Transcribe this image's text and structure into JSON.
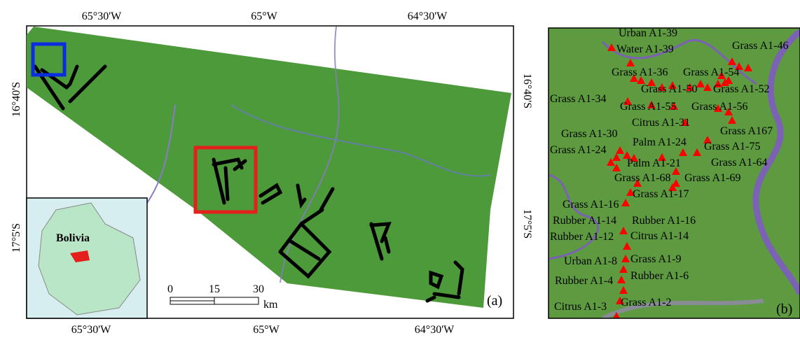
{
  "panel_a": {
    "top_labels": [
      "65°30'W",
      "65°W",
      "64°30'W"
    ],
    "bottom_labels": [
      "65°30'W",
      "65°W",
      "64°30'W"
    ],
    "left_labels": [
      "16°40'S",
      "17°5'S"
    ],
    "right_labels": [
      "16°40'S",
      "17°5'S"
    ],
    "inset_label": "Bolivia",
    "scale_labels": [
      "0",
      "15",
      "30"
    ],
    "scale_unit": "km",
    "panel_label": "(a)"
  },
  "panel_b": {
    "sample_labels": [
      "Urban A1-39",
      "Water A1-39",
      "Grass A1-46",
      "Grass A1-36",
      "Grass A1-54",
      "Grass A1-34",
      "Grass A1-50",
      "Grass A1-52",
      "Grass A1-55",
      "Grass A1-56",
      "Citrus A1-31",
      "Grass A167",
      "Grass A1-30",
      "Palm A1-24",
      "Grass A1-75",
      "Grass A1-24",
      "Palm A1-21",
      "Grass A1-64",
      "Grass A1-68",
      "Grass A1-69",
      "Grass A1-17",
      "Grass A1-16",
      "Rubber A1-14",
      "Rubber A1-16",
      "Rubber A1-12",
      "Citrus A1-14",
      "Urban A1-8",
      "Grass A1-9",
      "Rubber A1-6",
      "Rubber A1-4",
      "Grass A1-2",
      "Citrus A1-3"
    ],
    "panel_label": "(b)"
  }
}
